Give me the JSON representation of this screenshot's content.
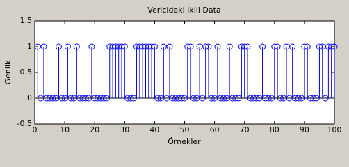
{
  "chart_data": {
    "type": "stem",
    "title": "Vericideki İkili Data",
    "xlabel": "Örnekler",
    "ylabel": "Genlik",
    "color": "#0000ff",
    "xlim": [
      0,
      100
    ],
    "xticks": [
      0,
      10,
      20,
      30,
      40,
      50,
      60,
      70,
      80,
      90,
      100
    ],
    "ylim": [
      -0.5,
      1.5
    ],
    "yticks": [
      -0.5,
      0,
      0.5,
      1,
      1.5
    ],
    "x": [
      1,
      2,
      3,
      4,
      5,
      6,
      7,
      8,
      9,
      10,
      11,
      12,
      13,
      14,
      15,
      16,
      17,
      18,
      19,
      20,
      21,
      22,
      23,
      24,
      25,
      26,
      27,
      28,
      29,
      30,
      31,
      32,
      33,
      34,
      35,
      36,
      37,
      38,
      39,
      40,
      41,
      42,
      43,
      44,
      45,
      46,
      47,
      48,
      49,
      50,
      51,
      52,
      53,
      54,
      55,
      56,
      57,
      58,
      59,
      60,
      61,
      62,
      63,
      64,
      65,
      66,
      67,
      68,
      69,
      70,
      71,
      72,
      73,
      74,
      75,
      76,
      77,
      78,
      79,
      80,
      81,
      82,
      83,
      84,
      85,
      86,
      87,
      88,
      89,
      90,
      91,
      92,
      93,
      94,
      95,
      96,
      97,
      98,
      99,
      100
    ],
    "values": [
      1,
      0,
      1,
      0,
      0,
      0,
      0,
      1,
      0,
      0,
      1,
      0,
      0,
      1,
      0,
      0,
      0,
      0,
      1,
      0,
      0,
      0,
      0,
      0,
      1,
      1,
      1,
      1,
      1,
      1,
      0,
      0,
      0,
      1,
      1,
      1,
      1,
      1,
      1,
      1,
      0,
      0,
      1,
      0,
      1,
      0,
      0,
      0,
      0,
      0,
      1,
      1,
      0,
      0,
      1,
      0,
      1,
      1,
      0,
      0,
      1,
      0,
      0,
      0,
      1,
      0,
      0,
      0,
      1,
      1,
      1,
      0,
      0,
      0,
      0,
      1,
      0,
      0,
      0,
      1,
      1,
      0,
      0,
      1,
      0,
      1,
      0,
      0,
      0,
      1,
      1,
      0,
      0,
      0,
      1,
      1,
      0,
      1,
      1,
      1
    ]
  }
}
